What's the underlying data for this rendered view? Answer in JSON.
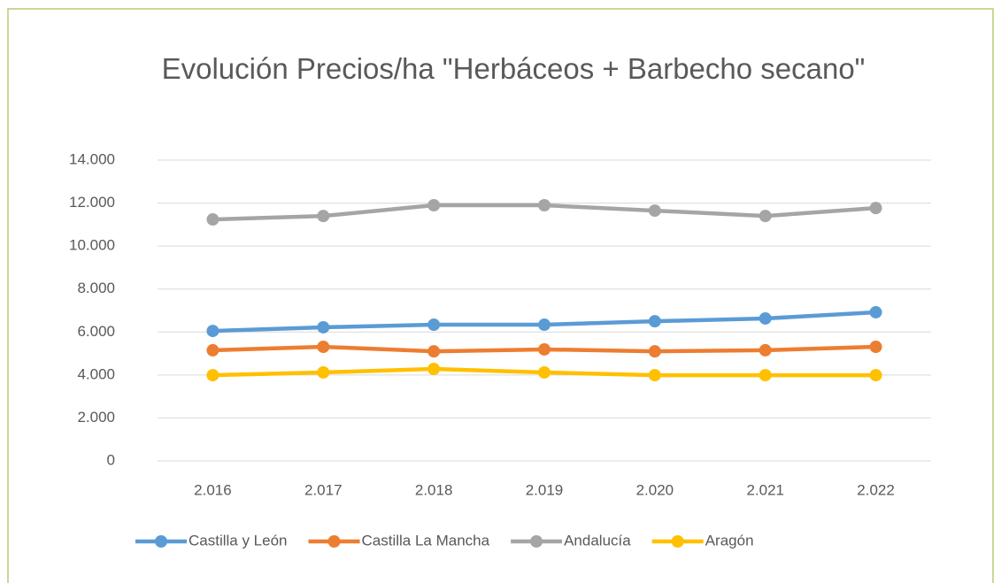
{
  "chart_data": {
    "type": "line",
    "title": "Evolución Precios/ha \"Herbáceos + Barbecho secano\"",
    "categories": [
      "2.016",
      "2.017",
      "2.018",
      "2.019",
      "2.020",
      "2.021",
      "2.022"
    ],
    "series": [
      {
        "name": "Castilla y León",
        "color": "#5b9bd5",
        "values": [
          6050,
          6220,
          6340,
          6340,
          6500,
          6630,
          6920
        ]
      },
      {
        "name": "Castilla La Mancha",
        "color": "#ed7d31",
        "values": [
          5150,
          5310,
          5100,
          5190,
          5100,
          5150,
          5310
        ]
      },
      {
        "name": "Andalucía",
        "color": "#a5a5a5",
        "values": [
          11240,
          11400,
          11900,
          11900,
          11650,
          11400,
          11770
        ]
      },
      {
        "name": "Aragón",
        "color": "#ffc000",
        "values": [
          3990,
          4120,
          4280,
          4120,
          3990,
          3990,
          3990
        ]
      }
    ],
    "ylim": [
      0,
      14000
    ],
    "yticks": [
      0,
      {
        "value": 2000,
        "label": "2.000"
      },
      {
        "value": 4000,
        "label": "4.000"
      },
      {
        "value": 6000,
        "label": "6.000"
      },
      {
        "value": 8000,
        "label": "8.000"
      },
      {
        "value": 10000,
        "label": "10.000"
      },
      {
        "value": 12000,
        "label": "12.000"
      },
      {
        "value": 14000,
        "label": "14.000"
      }
    ],
    "grid": true,
    "legend": "bottom"
  }
}
